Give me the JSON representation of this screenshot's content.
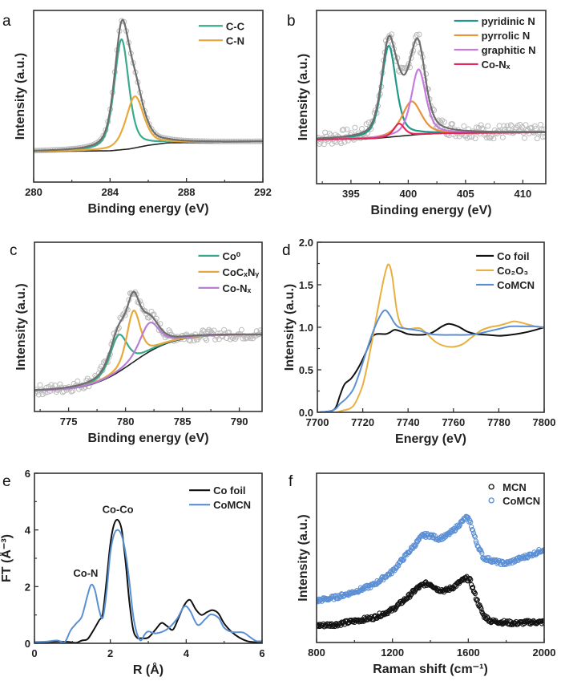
{
  "figure": {
    "panels": [
      "a",
      "b",
      "c",
      "d",
      "e",
      "f"
    ]
  },
  "chart_data": [
    {
      "id": "a",
      "panel_label": "a",
      "type": "line",
      "title": "",
      "xlabel": "Binding energy (eV)",
      "ylabel": "Intensity (a.u.)",
      "xlim": [
        280,
        292
      ],
      "ylim": [
        -0.25,
        1.15
      ],
      "xticks": [
        280,
        284,
        288,
        292
      ],
      "minor_xticks": [
        282,
        286,
        290
      ],
      "yticks": [],
      "grid": false,
      "legend_position": "top-right",
      "baseline": {
        "x": [
          280,
          284,
          285,
          286,
          287,
          292
        ],
        "y": [
          0.0,
          0.005,
          0.02,
          0.05,
          0.07,
          0.08
        ]
      },
      "peaks": [
        {
          "name": "C-C",
          "color": "#3aaa8c",
          "center": 284.6,
          "height": 0.9,
          "width": 0.45,
          "legend": true
        },
        {
          "name": "C-N",
          "color": "#e8a93c",
          "center": 285.3,
          "height": 0.42,
          "width": 0.55,
          "legend": true
        }
      ],
      "envelope_color": "#6e6e6e",
      "raw_data": {
        "name": "experimental",
        "marker": "open-circle",
        "color": "#bbbbbb",
        "noise": 0.0
      }
    },
    {
      "id": "b",
      "panel_label": "b",
      "type": "line",
      "title": "",
      "xlabel": "Binding energy (eV)",
      "ylabel": "Intensity (a.u.)",
      "xlim": [
        392,
        412
      ],
      "ylim": [
        -0.45,
        1.2
      ],
      "xticks": [
        395,
        400,
        405,
        410
      ],
      "minor_xticks": [
        392.5,
        397.5,
        402.5,
        407.5
      ],
      "yticks": [],
      "grid": false,
      "legend_position": "top-right",
      "baseline": {
        "x": [
          392,
          397,
          399,
          401,
          403,
          412
        ],
        "y": [
          -0.03,
          -0.02,
          0.0,
          0.02,
          0.03,
          0.04
        ]
      },
      "peaks": [
        {
          "name": "pyridinic N",
          "color": "#1f9a8a",
          "center": 398.3,
          "height": 0.87,
          "width": 0.75,
          "legend": true
        },
        {
          "name": "pyrrolic N",
          "color": "#e8913c",
          "center": 400.3,
          "height": 0.32,
          "width": 1.0,
          "legend": true
        },
        {
          "name": "graphitic N",
          "color": "#c77be0",
          "center": 400.9,
          "height": 0.62,
          "width": 0.75,
          "legend": true
        },
        {
          "name": "Co-Nₓ",
          "color": "#e0285a",
          "center": 399.2,
          "height": 0.12,
          "width": 0.55,
          "legend": true
        }
      ],
      "envelope_color": "#6e6e6e",
      "raw_data": {
        "name": "experimental",
        "marker": "open-circle",
        "color": "#bbbbbb",
        "noise": 0.07
      }
    },
    {
      "id": "c",
      "panel_label": "c",
      "type": "line",
      "title": "",
      "xlabel": "Binding energy (eV)",
      "ylabel": "Intensity (a.u.)",
      "xlim": [
        772,
        792
      ],
      "ylim": [
        -0.2,
        1.45
      ],
      "xticks": [
        775,
        780,
        785,
        790
      ],
      "minor_xticks": [
        772.5,
        777.5,
        782.5,
        787.5
      ],
      "yticks": [],
      "grid": false,
      "legend_position": "top-right",
      "baseline": {
        "type": "shirley",
        "low": 0.0,
        "high": 0.55,
        "center": 780.6,
        "width": 1.8
      },
      "peaks": [
        {
          "name": "Co⁰",
          "color": "#3aaa8c",
          "center": 779.4,
          "height": 0.36,
          "width": 0.9,
          "legend": true
        },
        {
          "name": "CoCₓNᵧ",
          "color": "#e8a93c",
          "center": 780.7,
          "height": 0.5,
          "width": 0.7,
          "legend": true
        },
        {
          "name": "Co-Nₓ",
          "color": "#b97fd6",
          "center": 782.1,
          "height": 0.28,
          "width": 1.0,
          "legend": true
        }
      ],
      "envelope_color": "#6e6e6e",
      "raw_data": {
        "name": "experimental",
        "marker": "open-circle",
        "color": "#bbbbbb",
        "noise": 0.05
      }
    },
    {
      "id": "d",
      "panel_label": "d",
      "type": "line",
      "title": "",
      "xlabel": "Energy (eV)",
      "ylabel": "Intensity (a.u.)",
      "xlim": [
        7700,
        7800
      ],
      "ylim": [
        0.0,
        2.0
      ],
      "xticks": [
        7700,
        7720,
        7740,
        7760,
        7780,
        7800
      ],
      "yticks": [
        0.0,
        0.5,
        1.0,
        1.5,
        2.0
      ],
      "ytick_labels": [
        "0.0",
        "0.5",
        "1.0",
        "1.5",
        "2.0"
      ],
      "grid": false,
      "legend_position": "top-right",
      "series": [
        {
          "name": "Co foil",
          "color": "#111111",
          "x": [
            7700,
            7705,
            7708,
            7710,
            7712,
            7715,
            7718,
            7721,
            7724,
            7726,
            7730,
            7732,
            7734,
            7737,
            7740,
            7745,
            7750,
            7755,
            7758,
            7762,
            7766,
            7770,
            7775,
            7780,
            7785,
            7790,
            7795,
            7800
          ],
          "y": [
            0.0,
            0.01,
            0.05,
            0.2,
            0.33,
            0.4,
            0.52,
            0.68,
            0.87,
            0.92,
            0.92,
            0.94,
            0.97,
            0.95,
            0.92,
            0.91,
            0.93,
            1.01,
            1.04,
            1.01,
            0.95,
            0.92,
            0.91,
            0.9,
            0.91,
            0.93,
            0.96,
            1.0
          ]
        },
        {
          "name": "Co₂O₃",
          "color": "#e8b040",
          "x": [
            7700,
            7708,
            7711,
            7714,
            7716,
            7718,
            7720,
            7722,
            7724,
            7726,
            7728,
            7730,
            7731.5,
            7733,
            7735,
            7737,
            7740,
            7745,
            7748,
            7752,
            7756,
            7760,
            7764,
            7768,
            7772,
            7776,
            7780,
            7784,
            7787,
            7792,
            7796,
            7800
          ],
          "y": [
            0.0,
            0.0,
            0.02,
            0.04,
            0.08,
            0.18,
            0.32,
            0.55,
            0.82,
            1.12,
            1.4,
            1.65,
            1.74,
            1.6,
            1.2,
            1.02,
            0.98,
            0.99,
            0.93,
            0.83,
            0.78,
            0.77,
            0.8,
            0.88,
            0.96,
            1.0,
            1.02,
            1.05,
            1.07,
            1.04,
            1.01,
            1.0
          ]
        },
        {
          "name": "CoMCN",
          "color": "#5b8fd4",
          "x": [
            7700,
            7705,
            7708,
            7710,
            7713,
            7716,
            7719,
            7722,
            7725,
            7728,
            7730,
            7732,
            7734,
            7736,
            7740,
            7745,
            7750,
            7755,
            7760,
            7765,
            7770,
            7775,
            7780,
            7785,
            7790,
            7795,
            7800
          ],
          "y": [
            0.0,
            0.01,
            0.04,
            0.1,
            0.17,
            0.28,
            0.5,
            0.75,
            0.98,
            1.15,
            1.2,
            1.14,
            1.05,
            1.0,
            0.98,
            0.96,
            0.92,
            0.91,
            0.91,
            0.91,
            0.92,
            0.95,
            0.98,
            1.01,
            1.01,
            1.01,
            1.0
          ]
        }
      ]
    },
    {
      "id": "e",
      "panel_label": "e",
      "type": "line",
      "title": "",
      "xlabel": "R (Å)",
      "ylabel": "FT (Å⁻³)",
      "xlim": [
        0,
        6
      ],
      "ylim": [
        0,
        6
      ],
      "xticks": [
        0,
        2,
        4,
        6
      ],
      "minor_xticks": [
        1,
        3,
        5
      ],
      "yticks": [
        0,
        2,
        4,
        6
      ],
      "minor_yticks": [
        1,
        3,
        5
      ],
      "grid": false,
      "legend_position": "top-right",
      "annotations": [
        {
          "text": "Co-Co",
          "x": 2.2,
          "y": 4.6
        },
        {
          "text": "Co-N",
          "x": 1.35,
          "y": 2.35
        }
      ],
      "series": [
        {
          "name": "Co foil",
          "color": "#111111",
          "x": [
            0,
            0.3,
            0.6,
            0.9,
            1.1,
            1.25,
            1.4,
            1.55,
            1.7,
            1.8,
            1.9,
            2.0,
            2.1,
            2.2,
            2.3,
            2.4,
            2.5,
            2.6,
            2.7,
            2.8,
            3.0,
            3.2,
            3.35,
            3.5,
            3.65,
            3.8,
            3.95,
            4.1,
            4.25,
            4.4,
            4.55,
            4.7,
            4.85,
            5.0,
            5.2,
            5.4,
            5.6,
            5.8,
            6.0
          ],
          "y": [
            0.03,
            0.04,
            0.06,
            0.05,
            0.02,
            0.1,
            0.15,
            0.45,
            0.8,
            1.05,
            2.2,
            3.5,
            4.2,
            4.35,
            4.0,
            2.9,
            1.5,
            0.5,
            0.2,
            0.18,
            0.2,
            0.5,
            0.72,
            0.6,
            0.48,
            0.9,
            1.35,
            1.53,
            1.2,
            1.0,
            1.1,
            1.17,
            1.05,
            0.7,
            0.4,
            0.2,
            0.08,
            0.04,
            0.05
          ]
        },
        {
          "name": "CoMCN",
          "color": "#5b8fd4",
          "x": [
            0,
            0.3,
            0.6,
            0.8,
            0.95,
            1.1,
            1.25,
            1.4,
            1.5,
            1.6,
            1.7,
            1.8,
            1.9,
            2.0,
            2.1,
            2.2,
            2.3,
            2.4,
            2.5,
            2.6,
            2.7,
            2.8,
            2.9,
            3.0,
            3.2,
            3.5,
            3.75,
            3.95,
            4.1,
            4.3,
            4.5,
            4.65,
            4.85,
            5.0,
            5.2,
            5.5,
            5.7,
            5.85,
            6.0
          ],
          "y": [
            0.05,
            0.06,
            0.1,
            0.05,
            0.45,
            0.7,
            0.95,
            1.7,
            2.07,
            1.85,
            1.2,
            0.9,
            1.8,
            3.2,
            3.85,
            4.0,
            3.8,
            3.2,
            2.2,
            1.0,
            0.35,
            0.1,
            0.3,
            0.42,
            0.35,
            0.5,
            0.85,
            1.3,
            1.15,
            0.65,
            0.85,
            1.02,
            0.9,
            0.55,
            0.4,
            0.38,
            0.2,
            0.08,
            0.08
          ]
        }
      ]
    },
    {
      "id": "f",
      "panel_label": "f",
      "type": "scatter",
      "title": "",
      "xlabel": "Raman shift (cm⁻¹)",
      "ylabel": "Intensity (a.u.)",
      "xlim": [
        800,
        2000
      ],
      "ylim": [
        -0.15,
        1.35
      ],
      "xticks": [
        800,
        1200,
        1600,
        2000
      ],
      "minor_xticks": [
        1000,
        1400,
        1800
      ],
      "yticks": [],
      "grid": false,
      "legend_position": "top-right",
      "series": [
        {
          "name": "MCN",
          "color": "#111111",
          "marker": "open-circle",
          "x": [
            800,
            900,
            1000,
            1100,
            1200,
            1280,
            1330,
            1370,
            1400,
            1440,
            1480,
            1520,
            1560,
            1590,
            1610,
            1640,
            1680,
            1720,
            1780,
            1850,
            1920,
            2000
          ],
          "y": [
            0.0,
            0.01,
            0.04,
            0.07,
            0.14,
            0.25,
            0.33,
            0.37,
            0.37,
            0.32,
            0.31,
            0.34,
            0.39,
            0.42,
            0.4,
            0.25,
            0.09,
            0.04,
            0.03,
            0.02,
            0.03,
            0.03
          ]
        },
        {
          "name": "CoMCN",
          "color": "#5b8fd4",
          "marker": "open-circle",
          "x": [
            800,
            900,
            1000,
            1100,
            1200,
            1260,
            1320,
            1360,
            1400,
            1440,
            1480,
            1520,
            1560,
            1590,
            1610,
            1640,
            1680,
            1720,
            1760,
            1800,
            1850,
            1900,
            1950,
            2000
          ],
          "y": [
            0.22,
            0.25,
            0.3,
            0.36,
            0.48,
            0.6,
            0.72,
            0.8,
            0.8,
            0.77,
            0.79,
            0.84,
            0.91,
            0.96,
            0.92,
            0.75,
            0.6,
            0.58,
            0.56,
            0.55,
            0.58,
            0.61,
            0.64,
            0.68
          ]
        }
      ]
    }
  ]
}
